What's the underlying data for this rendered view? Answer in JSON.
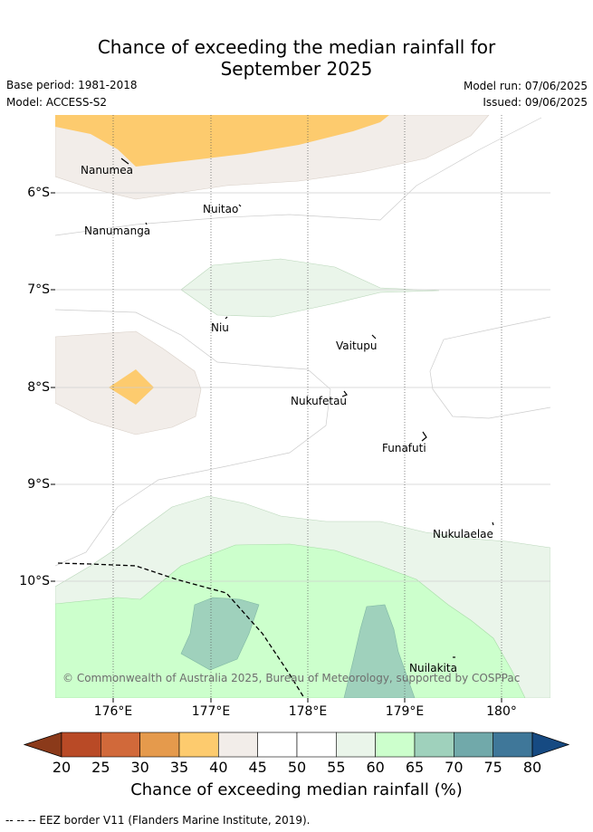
{
  "title_line1": "Chance of exceeding the median rainfall for",
  "title_line2": "September 2025",
  "base_period": "Base period: 1981-2018",
  "model": "Model: ACCESS-S2",
  "model_run": "Model run: 07/06/2025",
  "issued": "Issued: 09/06/2025",
  "y_ticks": [
    "6°S",
    "7°S",
    "8°S",
    "9°S",
    "10°S"
  ],
  "x_ticks": [
    "176°E",
    "177°E",
    "178°E",
    "179°E",
    "180°"
  ],
  "places": [
    {
      "name": "Nanumea"
    },
    {
      "name": "Nuitao"
    },
    {
      "name": "Nanumanga"
    },
    {
      "name": "Niu"
    },
    {
      "name": "Vaitupu"
    },
    {
      "name": "Nukufetau"
    },
    {
      "name": "Funafuti"
    },
    {
      "name": "Nukulaelae"
    },
    {
      "name": "Nuilakita"
    }
  ],
  "copyright": "© Commonwealth of Australia 2025, Bureau of Meteorology, supported by COSPPac",
  "colorbar": {
    "label": "Chance of exceeding median rainfall (%)",
    "ticks": [
      "20",
      "25",
      "30",
      "35",
      "40",
      "45",
      "50",
      "55",
      "60",
      "65",
      "70",
      "75",
      "80"
    ],
    "colors": [
      "#8b3a1a",
      "#b94a26",
      "#d1693a",
      "#e59a4c",
      "#fdcb6e",
      "#f2ede9",
      "#ffffff",
      "#ffffff",
      "#eaf5ea",
      "#ccffcc",
      "#9fd1bc",
      "#71a9aa",
      "#3f7799",
      "#164a82"
    ]
  },
  "legend_note": "-- -- -- EEZ border V11 (Flanders Marine Institute, 2019).",
  "icons": {
    "town_marker": "coastline-icon"
  }
}
